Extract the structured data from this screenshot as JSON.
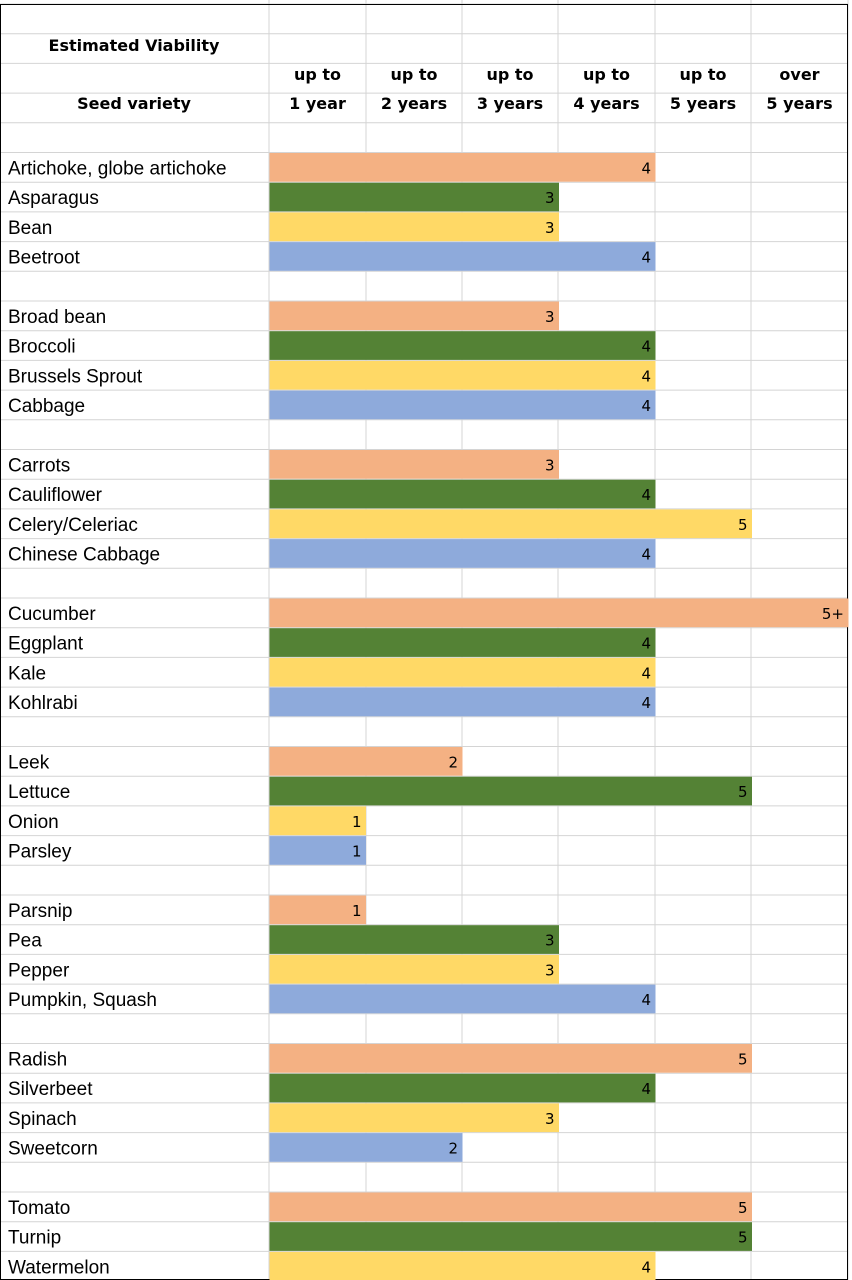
{
  "header": {
    "title": "Estimated Viability",
    "row_label": "Seed variety",
    "columns": [
      {
        "line1": "up to",
        "line2": "1 year"
      },
      {
        "line1": "up to",
        "line2": "2 years"
      },
      {
        "line1": "up to",
        "line2": "3 years"
      },
      {
        "line1": "up to",
        "line2": "4 years"
      },
      {
        "line1": "up to",
        "line2": "5 years"
      },
      {
        "line1": "over",
        "line2": "5 years"
      }
    ]
  },
  "colors": {
    "salmon": "#f4b183",
    "green": "#548235",
    "yellow": "#ffd966",
    "blue": "#8eaadb",
    "grid": "#d4d4d4"
  },
  "chart_data": {
    "type": "bar",
    "orientation": "horizontal",
    "xlim": [
      0,
      6
    ],
    "color_cycle": [
      "salmon",
      "green",
      "yellow",
      "blue"
    ],
    "groups": [
      [
        {
          "name": "Artichoke, globe artichoke",
          "value": 4,
          "label": "4"
        },
        {
          "name": "Asparagus",
          "value": 3,
          "label": "3"
        },
        {
          "name": "Bean",
          "value": 3,
          "label": "3"
        },
        {
          "name": "Beetroot",
          "value": 4,
          "label": "4"
        }
      ],
      [
        {
          "name": "Broad bean",
          "value": 3,
          "label": "3"
        },
        {
          "name": "Broccoli",
          "value": 4,
          "label": "4"
        },
        {
          "name": "Brussels Sprout",
          "value": 4,
          "label": "4"
        },
        {
          "name": "Cabbage",
          "value": 4,
          "label": "4"
        }
      ],
      [
        {
          "name": "Carrots",
          "value": 3,
          "label": "3"
        },
        {
          "name": "Cauliflower",
          "value": 4,
          "label": "4"
        },
        {
          "name": "Celery/Celeriac",
          "value": 5,
          "label": "5"
        },
        {
          "name": "Chinese Cabbage",
          "value": 4,
          "label": "4"
        }
      ],
      [
        {
          "name": "Cucumber",
          "value": 6,
          "label": "5+"
        },
        {
          "name": "Eggplant",
          "value": 4,
          "label": "4"
        },
        {
          "name": "Kale",
          "value": 4,
          "label": "4"
        },
        {
          "name": "Kohlrabi",
          "value": 4,
          "label": "4"
        }
      ],
      [
        {
          "name": "Leek",
          "value": 2,
          "label": "2"
        },
        {
          "name": "Lettuce",
          "value": 5,
          "label": "5"
        },
        {
          "name": "Onion",
          "value": 1,
          "label": "1"
        },
        {
          "name": "Parsley",
          "value": 1,
          "label": "1"
        }
      ],
      [
        {
          "name": "Parsnip",
          "value": 1,
          "label": "1"
        },
        {
          "name": "Pea",
          "value": 3,
          "label": "3"
        },
        {
          "name": "Pepper",
          "value": 3,
          "label": "3"
        },
        {
          "name": "Pumpkin, Squash",
          "value": 4,
          "label": "4"
        }
      ],
      [
        {
          "name": "Radish",
          "value": 5,
          "label": "5"
        },
        {
          "name": "Silverbeet",
          "value": 4,
          "label": "4"
        },
        {
          "name": "Spinach",
          "value": 3,
          "label": "3"
        },
        {
          "name": "Sweetcorn",
          "value": 2,
          "label": "2"
        }
      ],
      [
        {
          "name": "Tomato",
          "value": 5,
          "label": "5"
        },
        {
          "name": "Turnip",
          "value": 5,
          "label": "5"
        },
        {
          "name": "Watermelon",
          "value": 4,
          "label": "4"
        }
      ]
    ]
  }
}
